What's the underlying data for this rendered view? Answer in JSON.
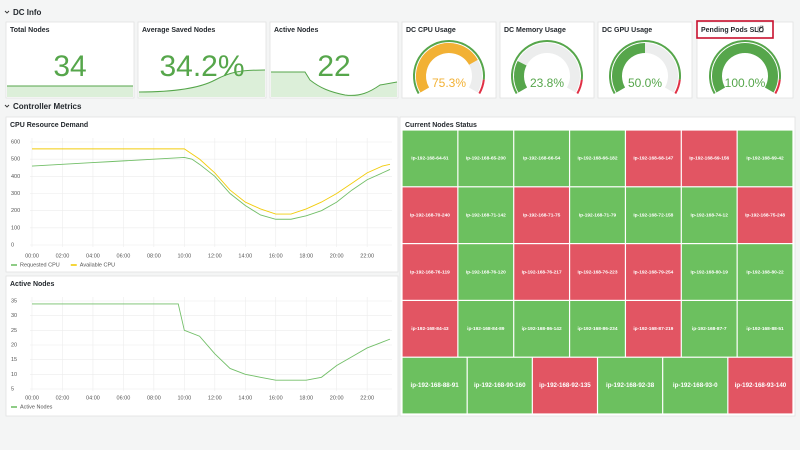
{
  "sections": [
    "DC Info",
    "Controller Metrics"
  ],
  "stats": [
    {
      "title": "Total Nodes",
      "value": "34"
    },
    {
      "title": "Average Saved Nodes",
      "value": "34.2%"
    },
    {
      "title": "Active Nodes",
      "value": "22"
    }
  ],
  "gauge_range": [
    0,
    100
  ],
  "gauges": [
    {
      "title": "DC CPU Usage",
      "value": 75.3,
      "value_label": "75.3%",
      "color": "#f2b134"
    },
    {
      "title": "DC Memory Usage",
      "value": 23.8,
      "value_label": "23.8%",
      "color": "#56a64b"
    },
    {
      "title": "DC GPU Usage",
      "value": 50.0,
      "value_label": "50.0%",
      "color": "#56a64b"
    },
    {
      "title": "Pending Pods SLO",
      "value": 100.0,
      "value_label": "100.0%",
      "color": "#56a64b"
    }
  ],
  "cpu_chart": {
    "type": "line",
    "title": "CPU Resource Demand",
    "x": [
      0,
      1,
      2,
      3,
      4,
      5,
      6,
      7,
      8,
      9,
      10,
      10.5,
      11,
      12,
      13,
      14,
      15,
      16,
      17,
      18,
      19,
      20,
      21,
      22,
      23,
      23.5
    ],
    "xlim": [
      0,
      23.5
    ],
    "xticks": [
      {
        "value": 0,
        "label": "00:00"
      },
      {
        "value": 2,
        "label": "02:00"
      },
      {
        "value": 4,
        "label": "04:00"
      },
      {
        "value": 6,
        "label": "06:00"
      },
      {
        "value": 8,
        "label": "08:00"
      },
      {
        "value": 10,
        "label": "10:00"
      },
      {
        "value": 12,
        "label": "12:00"
      },
      {
        "value": 14,
        "label": "14:00"
      },
      {
        "value": 16,
        "label": "16:00"
      },
      {
        "value": 18,
        "label": "18:00"
      },
      {
        "value": 20,
        "label": "20:00"
      },
      {
        "value": 22,
        "label": "22:00"
      }
    ],
    "ylim": [
      0,
      600
    ],
    "yticks": [
      0,
      100,
      200,
      300,
      400,
      500,
      600
    ],
    "series": [
      {
        "name": "Requested CPU",
        "color": "#73bf69",
        "values": [
          460,
          465,
          470,
          475,
          480,
          485,
          490,
          495,
          500,
          505,
          510,
          500,
          470,
          400,
          300,
          230,
          175,
          150,
          150,
          170,
          200,
          250,
          320,
          380,
          420,
          440
        ]
      },
      {
        "name": "Available CPU",
        "color": "#f2cc0c",
        "values": [
          560,
          560,
          560,
          560,
          560,
          560,
          560,
          560,
          560,
          560,
          560,
          530,
          500,
          420,
          320,
          250,
          210,
          180,
          180,
          210,
          250,
          300,
          360,
          420,
          460,
          470
        ]
      }
    ]
  },
  "nodes_chart": {
    "type": "line",
    "title": "Active Nodes",
    "x": [
      0,
      2,
      4,
      6,
      8,
      9.6,
      10,
      11,
      12,
      13,
      14,
      15,
      16,
      17,
      18,
      19,
      20,
      21,
      22,
      23,
      23.5
    ],
    "xlim": [
      0,
      23.5
    ],
    "xticks": [
      {
        "value": 0,
        "label": "00:00"
      },
      {
        "value": 2,
        "label": "02:00"
      },
      {
        "value": 4,
        "label": "04:00"
      },
      {
        "value": 6,
        "label": "06:00"
      },
      {
        "value": 8,
        "label": "08:00"
      },
      {
        "value": 10,
        "label": "10:00"
      },
      {
        "value": 12,
        "label": "12:00"
      },
      {
        "value": 14,
        "label": "14:00"
      },
      {
        "value": 16,
        "label": "16:00"
      },
      {
        "value": 18,
        "label": "18:00"
      },
      {
        "value": 20,
        "label": "20:00"
      },
      {
        "value": 22,
        "label": "22:00"
      }
    ],
    "ylim": [
      5,
      35
    ],
    "yticks": [
      5,
      10,
      15,
      20,
      25,
      30,
      35
    ],
    "series": [
      {
        "name": "Active Nodes",
        "color": "#73bf69",
        "values": [
          34,
          34,
          34,
          34,
          34,
          34,
          25,
          23,
          17,
          12,
          10,
          9,
          8,
          8,
          8,
          9,
          13,
          16,
          19,
          21,
          22
        ]
      }
    ]
  },
  "node_status": {
    "title": "Current Nodes Status",
    "nodes": [
      {
        "label": "ip-192-168-64-61",
        "color": "#6cc05f"
      },
      {
        "label": "ip-192-168-65-200",
        "color": "#6cc05f"
      },
      {
        "label": "ip-192-168-66-54",
        "color": "#6cc05f"
      },
      {
        "label": "ip-192-168-66-182",
        "color": "#6cc05f"
      },
      {
        "label": "ip-192-168-68-147",
        "color": "#e25563"
      },
      {
        "label": "ip-192-168-69-156",
        "color": "#e25563"
      },
      {
        "label": "ip-192-168-69-42",
        "color": "#6cc05f"
      },
      {
        "label": "ip-192-168-70-240",
        "color": "#e25563"
      },
      {
        "label": "ip-192-168-71-142",
        "color": "#6cc05f"
      },
      {
        "label": "ip-192-168-71-75",
        "color": "#e25563"
      },
      {
        "label": "ip-192-168-71-79",
        "color": "#6cc05f"
      },
      {
        "label": "ip-192-168-72-158",
        "color": "#6cc05f"
      },
      {
        "label": "ip-192-168-74-12",
        "color": "#6cc05f"
      },
      {
        "label": "ip-192-168-75-248",
        "color": "#e25563"
      },
      {
        "label": "ip-192-168-76-119",
        "color": "#e25563"
      },
      {
        "label": "ip-192-168-76-120",
        "color": "#6cc05f"
      },
      {
        "label": "ip-192-168-76-217",
        "color": "#e25563"
      },
      {
        "label": "ip-192-168-76-223",
        "color": "#e25563"
      },
      {
        "label": "ip-192-168-79-254",
        "color": "#e25563"
      },
      {
        "label": "ip-192-168-80-19",
        "color": "#6cc05f"
      },
      {
        "label": "ip-192-168-80-22",
        "color": "#6cc05f"
      },
      {
        "label": "ip-192-168-84-43",
        "color": "#e25563"
      },
      {
        "label": "ip-192-168-84-89",
        "color": "#6cc05f"
      },
      {
        "label": "ip-192-168-86-142",
        "color": "#6cc05f"
      },
      {
        "label": "ip-192-168-86-234",
        "color": "#6cc05f"
      },
      {
        "label": "ip-192-168-87-219",
        "color": "#e25563"
      },
      {
        "label": "ip-192-168-87-7",
        "color": "#6cc05f"
      },
      {
        "label": "ip-192-168-88-51",
        "color": "#6cc05f"
      },
      {
        "label": "ip-192-168-88-91",
        "color": "#6cc05f"
      },
      {
        "label": "ip-192-168-90-160",
        "color": "#6cc05f"
      },
      {
        "label": "ip-192-168-92-135",
        "color": "#e25563"
      },
      {
        "label": "ip-192-168-92-38",
        "color": "#6cc05f"
      },
      {
        "label": "ip-192-168-93-0",
        "color": "#6cc05f"
      },
      {
        "label": "ip-192-168-93-140",
        "color": "#e25563"
      }
    ]
  }
}
